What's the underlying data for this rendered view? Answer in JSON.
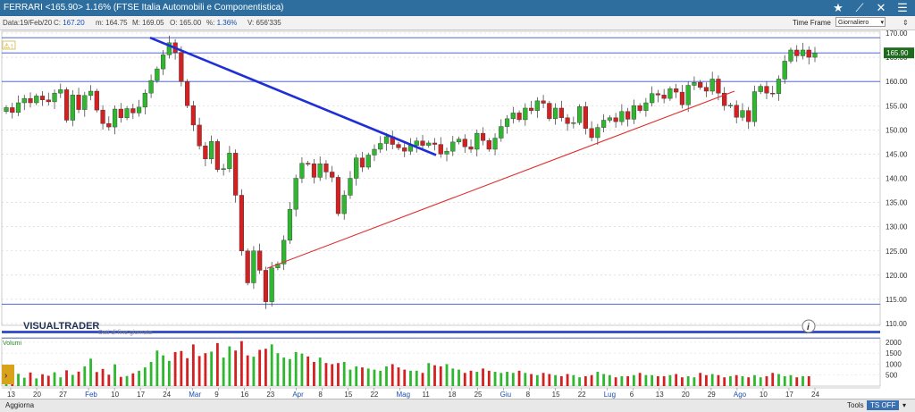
{
  "titlebar": {
    "title": "FERRARI <165.90> 1.16%  (FTSE Italia Automobili e Componentistica)"
  },
  "info": {
    "date_label": "Data:",
    "date": "19/Feb/20",
    "close_label": "C:",
    "close": "167.20",
    "min_label": "m:",
    "min": "164.75",
    "max_label": "M:",
    "max": "169.05",
    "open_label": "O:",
    "open": "165.00",
    "pct_label": "%:",
    "pct": "1.36%",
    "vol_label": "V:",
    "vol": "656'335"
  },
  "timeframe": {
    "label": "Time Frame",
    "value": "Giornaliero"
  },
  "watermark": "VISUALTRADER",
  "data_note": "Dati di fine giornata",
  "last_price_tag": "165.90",
  "volume_label": "Volumi",
  "volume_axis": [
    "2000",
    "1500",
    "1000",
    "500"
  ],
  "footer": {
    "update": "Aggiorna",
    "tools": "Tools",
    "tsoff": "TS OFF"
  },
  "colors": {
    "up": "#2fb82f",
    "down": "#d42020",
    "trend_blue": "#1f2fd6",
    "trend_red": "#e03030",
    "level": "#3a52cc"
  },
  "chart_data": {
    "type": "candlestick",
    "y_axis": {
      "range": [
        110,
        170
      ],
      "ticks": [
        "170.00",
        "165.00",
        "160.00",
        "155.00",
        "150.00",
        "145.00",
        "140.00",
        "135.00",
        "130.00",
        "125.00",
        "120.00",
        "115.00",
        "110.00"
      ]
    },
    "x_labels": [
      "13",
      "20",
      "27",
      "Feb",
      "10",
      "17",
      "24",
      "Mar",
      "9",
      "16",
      "23",
      "Apr",
      "8",
      "15",
      "22",
      "Mag",
      "11",
      "18",
      "25",
      "Giu",
      "8",
      "15",
      "22",
      "Lug",
      "6",
      "13",
      "20",
      "29",
      "Ago",
      "10",
      "17",
      "24"
    ],
    "highlighted_x": [
      "Feb",
      "Mar",
      "Apr",
      "Mag",
      "Giu",
      "Lug",
      "Ago"
    ],
    "horizontal_levels": [
      169.05,
      165.9,
      160.0,
      114.0,
      107.0
    ],
    "close_series": [
      154.6,
      153.6,
      155.6,
      156.5,
      155.6,
      157.0,
      156.2,
      155.8,
      157.6,
      158.3,
      152.0,
      157.2,
      154.2,
      157.1,
      158.0,
      154.1,
      151.3,
      150.6,
      154.3,
      152.5,
      154.4,
      153.5,
      154.7,
      157.6,
      160.2,
      162.6,
      165.5,
      168.0,
      166.0,
      160.0,
      155.0,
      151.0,
      146.7,
      144.0,
      147.6,
      141.8,
      142.0,
      145.2,
      136.5,
      125.0,
      118.4,
      125.0,
      121.0,
      114.5,
      121.5,
      122.3,
      127.2,
      133.6,
      140.0,
      143.1,
      143.0,
      140.2,
      143.0,
      141.3,
      140.2,
      132.7,
      136.5,
      140.0,
      144.2,
      142.3,
      144.8,
      146.0,
      147.2,
      148.6,
      147.0,
      146.3,
      145.6,
      146.8,
      147.7,
      146.8,
      147.3,
      147.0,
      145.0,
      145.6,
      147.5,
      148.1,
      146.5,
      146.0,
      149.3,
      147.8,
      146.0,
      148.3,
      150.7,
      152.3,
      153.5,
      152.1,
      154.5,
      154.0,
      156.0,
      155.5,
      152.3,
      154.5,
      152.5,
      151.3,
      151.5,
      154.8,
      150.3,
      148.4,
      150.5,
      152.0,
      152.5,
      151.7,
      153.8,
      152.2,
      155.0,
      154.0,
      155.6,
      157.5,
      157.2,
      156.5,
      158.5,
      157.8,
      155.2,
      159.2,
      159.8,
      158.8,
      158.0,
      160.5,
      157.6,
      155.0,
      155.1,
      152.6,
      154.0,
      151.7,
      157.9,
      159.0,
      157.6,
      157.5,
      160.5,
      164.2,
      166.5,
      165.3,
      166.5,
      165.0,
      165.9
    ],
    "volume_series": [
      500,
      420,
      560,
      380,
      620,
      350,
      540,
      470,
      630,
      400,
      720,
      510,
      660,
      900,
      1250,
      640,
      780,
      520,
      990,
      420,
      460,
      580,
      700,
      850,
      1100,
      1620,
      1400,
      1150,
      1550,
      1600,
      1270,
      1900,
      1370,
      1500,
      1570,
      1960,
      1300,
      1810,
      1620,
      2050,
      1400,
      1340,
      1650,
      1700,
      1900,
      1500,
      1300,
      1230,
      1550,
      1480,
      1350,
      1100,
      1300,
      1050,
      1000,
      1050,
      1100,
      750,
      900,
      850,
      800,
      750,
      700,
      900,
      1000,
      850,
      750,
      700,
      700,
      600,
      1050,
      950,
      900,
      1000,
      800,
      750,
      600,
      700,
      650,
      800,
      700,
      650,
      600,
      650,
      600,
      700,
      600,
      550,
      500,
      600,
      550,
      500,
      450,
      550,
      500,
      400,
      450,
      500,
      650,
      550,
      500,
      400,
      450,
      450,
      500,
      600,
      500,
      500,
      450,
      450,
      500,
      550,
      400,
      450,
      400,
      600,
      500,
      550,
      500,
      400,
      450,
      500,
      450,
      400,
      500,
      400,
      450,
      600,
      550,
      450,
      500,
      400,
      450,
      450
    ]
  }
}
